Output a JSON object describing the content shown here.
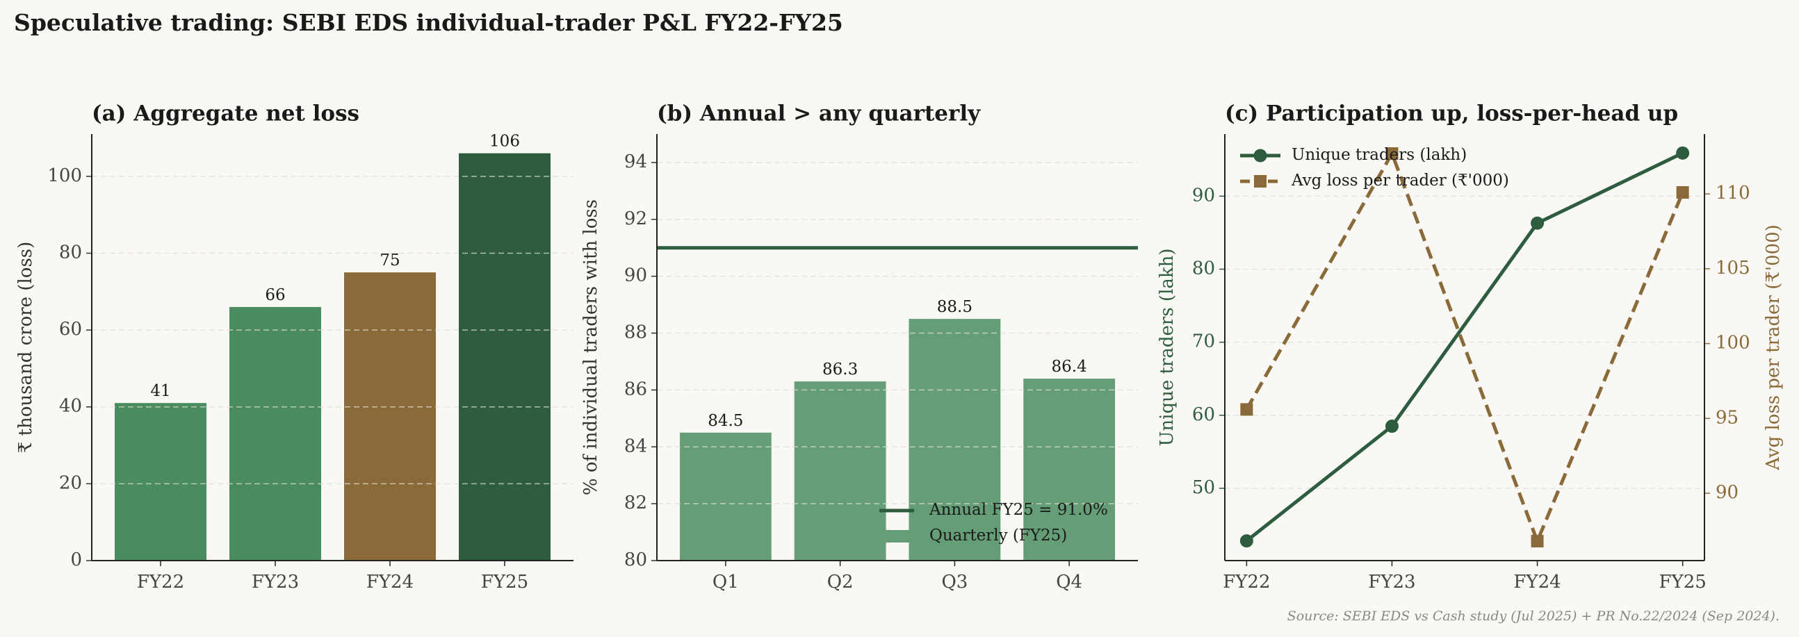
{
  "title": "Speculative trading: SEBI EDS individual-trader P&L FY22-FY25",
  "source": "Source: SEBI EDS vs Cash study (Jul 2025) + PR No.22/2024 (Sep 2024).",
  "chart_data": [
    {
      "type": "bar",
      "title": "(a) Aggregate net loss",
      "ylabel": "₹ thousand crore (loss)",
      "categories": [
        "FY22",
        "FY23",
        "FY24",
        "FY25"
      ],
      "values": [
        41,
        66,
        75,
        106
      ],
      "colors": [
        "#4a8c5f",
        "#4a8c5f",
        "#8a6a38",
        "#2d5c3e"
      ],
      "ylim": [
        0,
        111
      ],
      "yticks": [
        0,
        20,
        40,
        60,
        80,
        100
      ],
      "grid": true
    },
    {
      "type": "bar",
      "title": "(b) Annual > any quarterly",
      "ylabel": "% of individual traders with loss",
      "categories": [
        "Q1",
        "Q2",
        "Q3",
        "Q4"
      ],
      "series": [
        {
          "name": "Quarterly (FY25)",
          "color": "#659e76",
          "values": [
            84.5,
            86.3,
            88.5,
            86.4
          ]
        }
      ],
      "reference": {
        "value": 91.0,
        "label": "Annual FY25 = 91.0%",
        "color": "#2d5c3e"
      },
      "ylim": [
        80,
        95
      ],
      "yticks": [
        80,
        82,
        84,
        86,
        88,
        90,
        92,
        94
      ],
      "grid": true,
      "legend": "lower right"
    },
    {
      "type": "line",
      "title": "(c) Participation up, loss-per-head up",
      "ylabel": "Unique traders (lakh)",
      "y2label": "Avg loss per trader (₹'000)",
      "categories": [
        "FY22",
        "FY23",
        "FY24",
        "FY25"
      ],
      "series": [
        {
          "name": "Unique traders (lakh)",
          "color": "#2d5c3e",
          "values": [
            42.8,
            58.5,
            86.3,
            95.9
          ],
          "axis": "y"
        },
        {
          "name": "Avg loss per trader (₹'000)",
          "color": "#8a6a38",
          "values": [
            95.6,
            112.7,
            86.8,
            110.1
          ],
          "axis": "y2"
        }
      ],
      "ylim": [
        40.1,
        98.5
      ],
      "yticks": [
        50,
        60,
        70,
        80,
        90
      ],
      "y2lim": [
        85.5,
        114
      ],
      "y2ticks": [
        90,
        95,
        100,
        105,
        110
      ],
      "grid": true,
      "legend": "upper left"
    }
  ]
}
